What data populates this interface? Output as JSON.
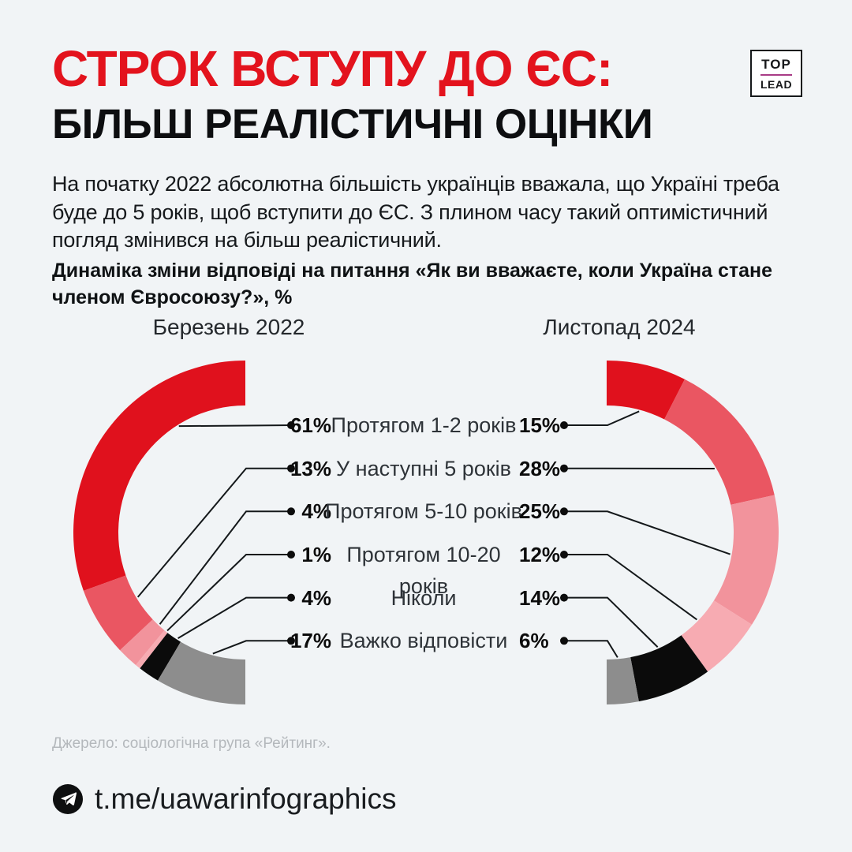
{
  "header": {
    "title_line1": "СТРОК ВСТУПУ ДО ЄС:",
    "title_line2": "БІЛЬШ РЕАЛІСТИЧНІ ОЦІНКИ",
    "logo_top": "TOP",
    "logo_lead": "LEAD"
  },
  "intro": "На початку 2022 абсолютна більшість українців вважала, що Україні треба буде до 5 років, щоб вступити до ЄС. З плином часу такий оптимістичний погляд змінився на більш реалістичний.",
  "question": "Динаміка зміни відповіді на питання «Як ви вважаєте, коли Україна стане членом Євросоюзу?», %",
  "chart_data": {
    "type": "donut",
    "unit": "%",
    "title": "Динаміка зміни відповіді на питання «Як ви вважаєте, коли Україна стане членом Євросоюзу?», %",
    "categories": [
      "Протягом 1-2 років",
      "У наступні 5 років",
      "Протягом 5-10 років",
      "Протягом 10-20 років",
      "Ніколи",
      "Важко відповісти"
    ],
    "series": [
      {
        "name": "Березень 2022",
        "values": [
          61,
          13,
          4,
          1,
          4,
          17
        ],
        "sweep": "counterclockwise",
        "span_degrees": 180
      },
      {
        "name": "Листопад 2024",
        "values": [
          15,
          28,
          25,
          12,
          14,
          6
        ],
        "sweep": "clockwise",
        "span_degrees": 180
      }
    ],
    "colors": [
      "#e0111d",
      "#ea5662",
      "#f2939c",
      "#f7abb2",
      "#0b0b0b",
      "#8d8d8d"
    ],
    "legend_position": "center-between-donuts"
  },
  "source": "Джерело: соціологічна група «Рейтинг».",
  "footer": {
    "handle": "t.me/uawarinfographics",
    "icon": "telegram-icon"
  }
}
